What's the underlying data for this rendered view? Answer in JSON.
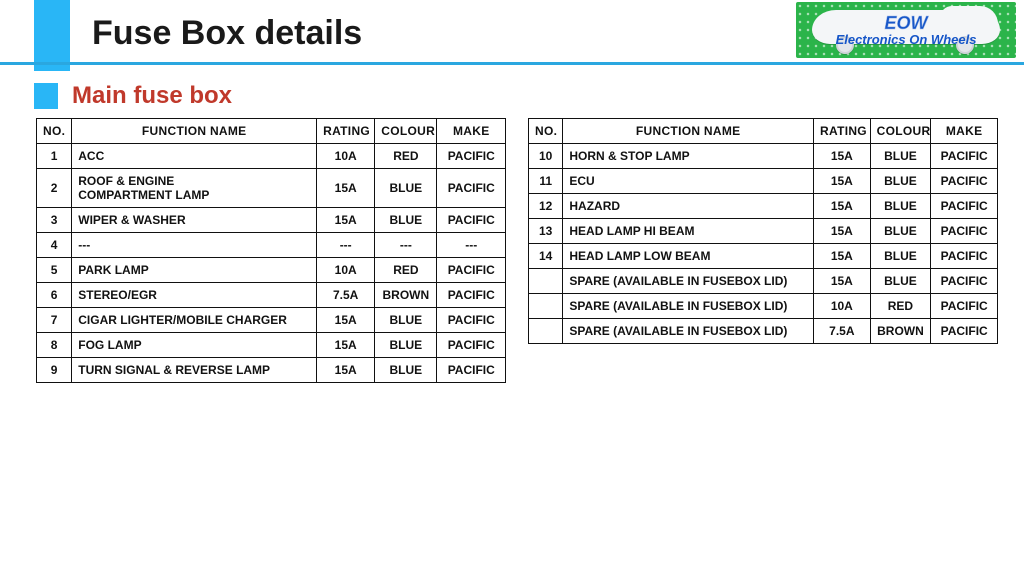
{
  "colors": {
    "accent_blue": "#29b6f6",
    "divider_blue": "#2aa7e0",
    "subtitle_red": "#c0392b",
    "logo_green": "#2bb44a",
    "logo_text_blue": "#1656c8",
    "table_border": "#111111",
    "background": "#ffffff"
  },
  "header": {
    "title": "Fuse Box details",
    "subtitle": "Main fuse box"
  },
  "logo": {
    "line1": "EOW",
    "line2": "Electronics On Wheels"
  },
  "tables": {
    "columns": [
      "NO.",
      "FUNCTION NAME",
      "RATING",
      "COLOUR",
      "MAKE"
    ],
    "left": [
      {
        "no": "1",
        "fn": "ACC",
        "rating": "10A",
        "colour": "RED",
        "make": "PACIFIC"
      },
      {
        "no": "2",
        "fn": "ROOF & ENGINE\nCOMPARTMENT LAMP",
        "rating": "15A",
        "colour": "BLUE",
        "make": "PACIFIC"
      },
      {
        "no": "3",
        "fn": "WIPER & WASHER",
        "rating": "15A",
        "colour": "BLUE",
        "make": "PACIFIC"
      },
      {
        "no": "4",
        "fn": "---",
        "rating": "---",
        "colour": "---",
        "make": "---"
      },
      {
        "no": "5",
        "fn": "PARK LAMP",
        "rating": "10A",
        "colour": "RED",
        "make": "PACIFIC"
      },
      {
        "no": "6",
        "fn": "STEREO/EGR",
        "rating": "7.5A",
        "colour": "BROWN",
        "make": "PACIFIC"
      },
      {
        "no": "7",
        "fn": "CIGAR LIGHTER/MOBILE CHARGER",
        "rating": "15A",
        "colour": "BLUE",
        "make": "PACIFIC"
      },
      {
        "no": "8",
        "fn": "FOG LAMP",
        "rating": "15A",
        "colour": "BLUE",
        "make": "PACIFIC"
      },
      {
        "no": "9",
        "fn": "TURN SIGNAL & REVERSE LAMP",
        "rating": "15A",
        "colour": "BLUE",
        "make": "PACIFIC"
      }
    ],
    "right": [
      {
        "no": "10",
        "fn": "HORN & STOP LAMP",
        "rating": "15A",
        "colour": "BLUE",
        "make": "PACIFIC"
      },
      {
        "no": "11",
        "fn": "ECU",
        "rating": "15A",
        "colour": "BLUE",
        "make": "PACIFIC"
      },
      {
        "no": "12",
        "fn": "HAZARD",
        "rating": "15A",
        "colour": "BLUE",
        "make": "PACIFIC"
      },
      {
        "no": "13",
        "fn": "HEAD LAMP HI BEAM",
        "rating": "15A",
        "colour": "BLUE",
        "make": "PACIFIC"
      },
      {
        "no": "14",
        "fn": "HEAD LAMP LOW BEAM",
        "rating": "15A",
        "colour": "BLUE",
        "make": "PACIFIC"
      },
      {
        "no": "",
        "fn": "SPARE (AVAILABLE IN FUSEBOX LID)",
        "rating": "15A",
        "colour": "BLUE",
        "make": "PACIFIC"
      },
      {
        "no": "",
        "fn": "SPARE (AVAILABLE IN FUSEBOX LID)",
        "rating": "10A",
        "colour": "RED",
        "make": "PACIFIC"
      },
      {
        "no": "",
        "fn": "SPARE (AVAILABLE IN FUSEBOX LID)",
        "rating": "7.5A",
        "colour": "BROWN",
        "make": "PACIFIC"
      }
    ]
  }
}
